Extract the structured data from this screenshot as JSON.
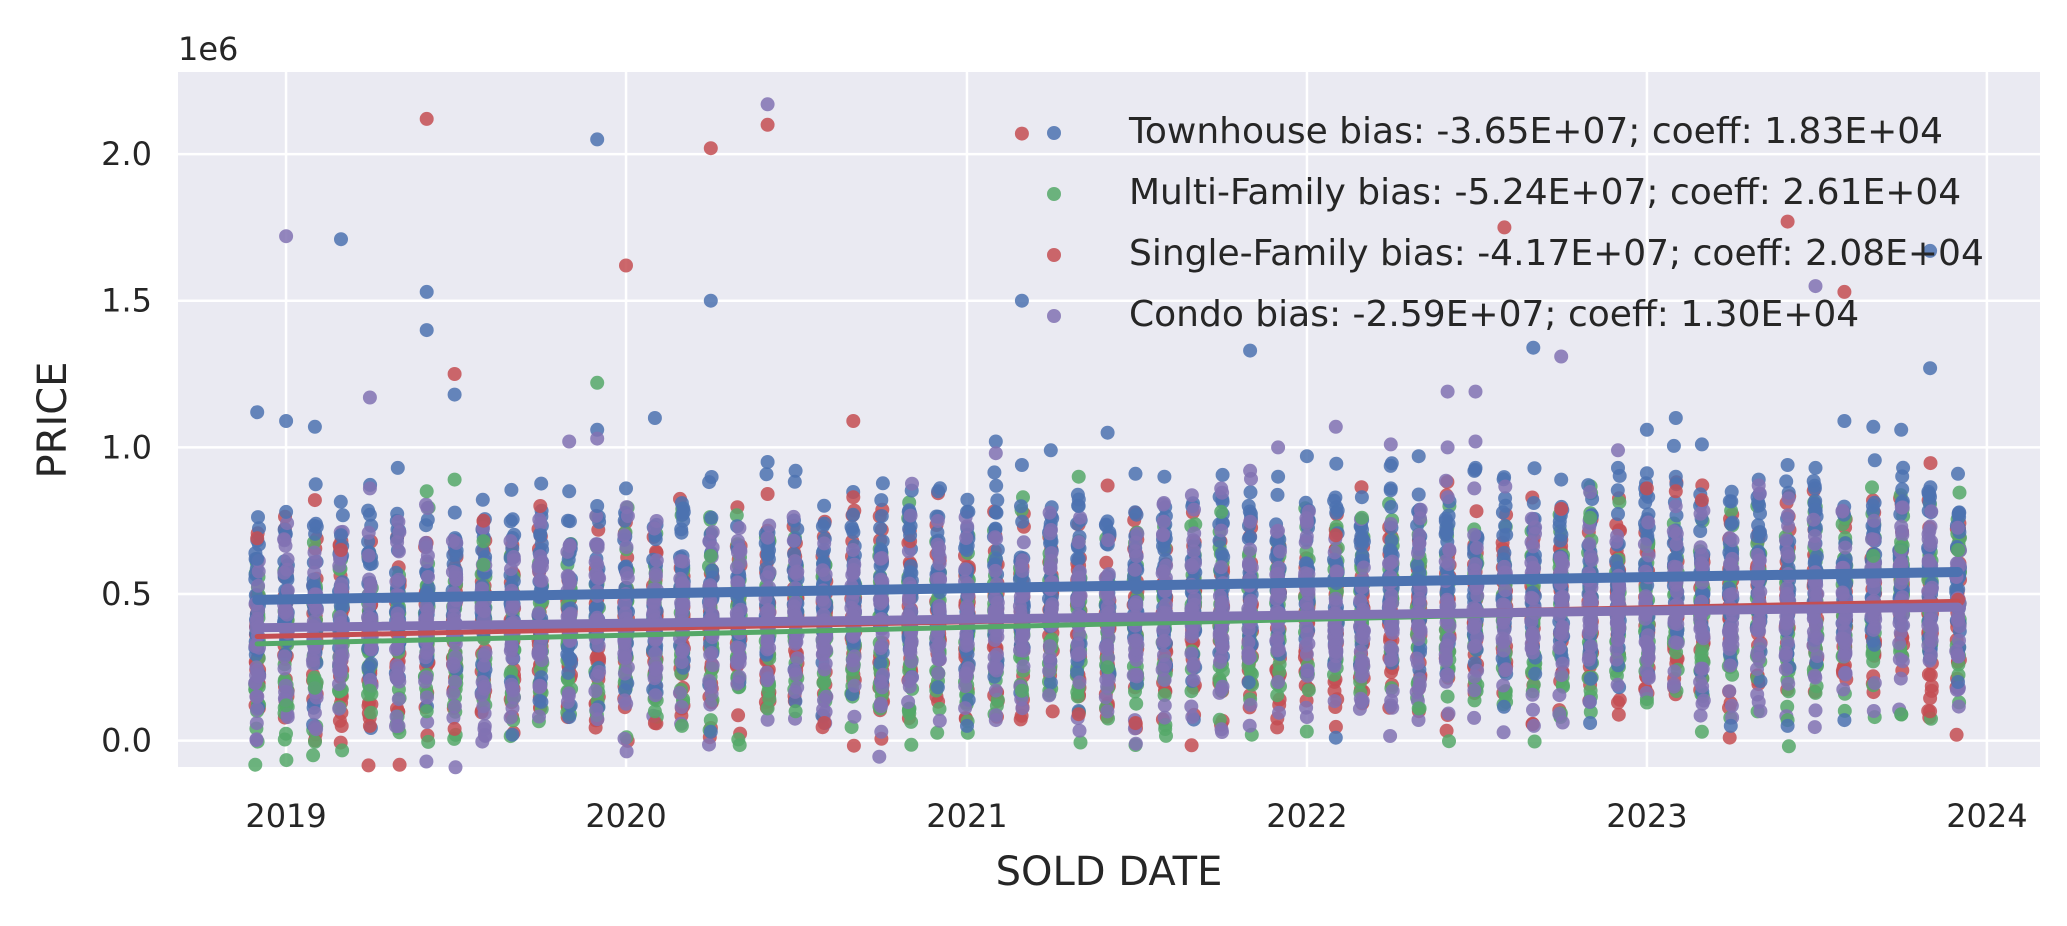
{
  "chart_data": {
    "type": "scatter",
    "title": "",
    "xlabel": "SOLD DATE",
    "ylabel": "PRICE",
    "y_offset_label": "1e6",
    "xlim": [
      "2018-09-07",
      "2024-02-27"
    ],
    "ylim": [
      -0.09,
      2.28
    ],
    "x_ticks": [
      {
        "value": "2019-01-01",
        "label": "2019"
      },
      {
        "value": "2020-01-01",
        "label": "2020"
      },
      {
        "value": "2021-01-01",
        "label": "2021"
      },
      {
        "value": "2022-01-01",
        "label": "2022"
      },
      {
        "value": "2023-01-01",
        "label": "2023"
      },
      {
        "value": "2024-01-01",
        "label": "2024"
      }
    ],
    "y_ticks": [
      {
        "value": 0.0,
        "label": "0.0"
      },
      {
        "value": 0.5,
        "label": "0.5"
      },
      {
        "value": 1.0,
        "label": "1.0"
      },
      {
        "value": 1.5,
        "label": "1.5"
      },
      {
        "value": 2.0,
        "label": "2.0"
      }
    ],
    "grid": true,
    "legend_position": "top-right",
    "series": [
      {
        "name": "Townhouse bias: -3.65E+07; coeff: 1.83E+04",
        "color": "#4c72b0",
        "fit": {
          "start": [
            "2018-12-01",
            0.48
          ],
          "end": [
            "2023-12-01",
            0.575
          ]
        },
        "points": [
          [
            "2018-12-01",
            1.12
          ],
          [
            "2018-12-01",
            0.62
          ],
          [
            "2019-01-01",
            0.78
          ],
          [
            "2019-01-01",
            1.09
          ],
          [
            "2019-02-01",
            1.07
          ],
          [
            "2019-03-01",
            1.71
          ],
          [
            "2019-03-01",
            0.7
          ],
          [
            "2019-04-01",
            0.77
          ],
          [
            "2019-05-01",
            0.93
          ],
          [
            "2019-06-01",
            1.53
          ],
          [
            "2019-06-01",
            1.4
          ],
          [
            "2019-07-01",
            1.18
          ],
          [
            "2019-09-01",
            0.02
          ],
          [
            "2019-10-01",
            0.7
          ],
          [
            "2019-11-01",
            0.08
          ],
          [
            "2019-11-01",
            0.85
          ],
          [
            "2019-12-01",
            2.05
          ],
          [
            "2019-12-01",
            1.06
          ],
          [
            "2019-12-01",
            0.8
          ],
          [
            "2020-01-01",
            0.86
          ],
          [
            "2020-02-01",
            1.1
          ],
          [
            "2020-03-01",
            0.81
          ],
          [
            "2020-04-01",
            1.5
          ],
          [
            "2020-04-01",
            0.03
          ],
          [
            "2020-06-01",
            0.95
          ],
          [
            "2020-07-01",
            0.92
          ],
          [
            "2020-08-01",
            0.74
          ],
          [
            "2020-10-01",
            0.82
          ],
          [
            "2020-11-01",
            0.7
          ],
          [
            "2020-12-01",
            0.85
          ],
          [
            "2021-01-01",
            0.78
          ],
          [
            "2021-01-01",
            0.05
          ],
          [
            "2021-02-01",
            1.02
          ],
          [
            "2021-03-01",
            1.5
          ],
          [
            "2021-03-01",
            0.94
          ],
          [
            "2021-04-01",
            0.99
          ],
          [
            "2021-05-01",
            0.8
          ],
          [
            "2021-06-01",
            1.05
          ],
          [
            "2021-07-01",
            0.91
          ],
          [
            "2021-08-01",
            0.9
          ],
          [
            "2021-11-01",
            1.33
          ],
          [
            "2021-12-01",
            0.9
          ],
          [
            "2022-01-01",
            0.97
          ],
          [
            "2022-02-01",
            0.01
          ],
          [
            "2022-03-01",
            0.83
          ],
          [
            "2022-04-01",
            0.86
          ],
          [
            "2022-05-01",
            0.97
          ],
          [
            "2022-07-01",
            0.93
          ],
          [
            "2022-08-01",
            0.64
          ],
          [
            "2022-09-01",
            1.34
          ],
          [
            "2022-10-01",
            0.89
          ],
          [
            "2022-11-01",
            0.06
          ],
          [
            "2022-12-01",
            0.93
          ],
          [
            "2023-01-01",
            1.06
          ],
          [
            "2023-02-01",
            1.1
          ],
          [
            "2023-02-01",
            0.9
          ],
          [
            "2023-03-01",
            1.01
          ],
          [
            "2023-04-01",
            0.05
          ],
          [
            "2023-05-01",
            0.89
          ],
          [
            "2023-06-01",
            0.94
          ],
          [
            "2023-06-01",
            0.05
          ],
          [
            "2023-07-01",
            0.93
          ],
          [
            "2023-08-01",
            1.09
          ],
          [
            "2023-08-01",
            0.07
          ],
          [
            "2023-09-01",
            1.07
          ],
          [
            "2023-10-01",
            1.06
          ],
          [
            "2023-11-01",
            1.27
          ],
          [
            "2023-11-01",
            1.67
          ],
          [
            "2023-12-01",
            0.91
          ],
          [
            "2023-12-01",
            0.2
          ]
        ]
      },
      {
        "name": "Multi-Family bias: -5.24E+07; coeff: 2.61E+04",
        "color": "#55a868",
        "fit": {
          "start": [
            "2018-12-01",
            0.33
          ],
          "end": [
            "2023-12-01",
            0.465
          ]
        },
        "points": [
          [
            "2019-01-01",
            0.12
          ],
          [
            "2019-02-01",
            0.18
          ],
          [
            "2019-04-01",
            0.17
          ],
          [
            "2019-06-01",
            0.85
          ],
          [
            "2019-06-01",
            0.1
          ],
          [
            "2019-07-01",
            0.89
          ],
          [
            "2019-08-01",
            0.6
          ],
          [
            "2019-08-01",
            0.68
          ],
          [
            "2019-12-01",
            1.22
          ],
          [
            "2020-02-01",
            0.1
          ],
          [
            "2020-03-01",
            0.05
          ],
          [
            "2020-04-01",
            0.07
          ],
          [
            "2020-04-01",
            0.63
          ],
          [
            "2020-06-01",
            0.11
          ],
          [
            "2020-07-01",
            0.1
          ],
          [
            "2021-03-01",
            0.17
          ],
          [
            "2021-05-01",
            0.9
          ],
          [
            "2021-06-01",
            0.25
          ],
          [
            "2021-10-01",
            0.78
          ],
          [
            "2022-03-01",
            0.76
          ],
          [
            "2022-05-01",
            0.11
          ],
          [
            "2022-06-01",
            0.15
          ],
          [
            "2022-11-01",
            0.76
          ],
          [
            "2023-01-01",
            0.13
          ],
          [
            "2023-03-01",
            0.03
          ],
          [
            "2023-06-01",
            0.07
          ],
          [
            "2023-09-01",
            0.63
          ],
          [
            "2023-10-01",
            0.09
          ],
          [
            "2023-10-01",
            0.66
          ],
          [
            "2023-12-01",
            0.65
          ]
        ]
      },
      {
        "name": "Single-Family bias: -4.17E+07; coeff: 2.08E+04",
        "color": "#c44e52",
        "fit": {
          "start": [
            "2018-12-01",
            0.355
          ],
          "end": [
            "2023-12-01",
            0.475
          ]
        },
        "points": [
          [
            "2018-12-01",
            0.69
          ],
          [
            "2019-02-01",
            0.82
          ],
          [
            "2019-03-01",
            0.65
          ],
          [
            "2019-04-01",
            0.05
          ],
          [
            "2019-06-01",
            2.12
          ],
          [
            "2019-07-01",
            1.25
          ],
          [
            "2019-07-01",
            0.04
          ],
          [
            "2019-08-01",
            0.75
          ],
          [
            "2019-10-01",
            0.8
          ],
          [
            "2020-01-01",
            1.62
          ],
          [
            "2020-02-01",
            0.06
          ],
          [
            "2020-04-01",
            2.02
          ],
          [
            "2020-06-01",
            2.1
          ],
          [
            "2020-08-01",
            0.06
          ],
          [
            "2020-09-01",
            1.09
          ],
          [
            "2020-09-01",
            0.83
          ],
          [
            "2020-11-01",
            0.68
          ],
          [
            "2021-03-01",
            2.07
          ],
          [
            "2021-05-01",
            0.09
          ],
          [
            "2021-07-01",
            0.06
          ],
          [
            "2021-06-01",
            0.87
          ],
          [
            "2022-02-01",
            0.7
          ],
          [
            "2022-08-01",
            1.75
          ],
          [
            "2022-10-01",
            0.79
          ],
          [
            "2022-12-01",
            0.13
          ],
          [
            "2023-01-01",
            0.86
          ],
          [
            "2023-02-01",
            0.85
          ],
          [
            "2023-03-01",
            0.82
          ],
          [
            "2023-06-01",
            1.77
          ],
          [
            "2023-08-01",
            1.53
          ],
          [
            "2023-11-01",
            0.1
          ],
          [
            "2023-12-01",
            0.48
          ]
        ]
      },
      {
        "name": "Condo bias: -2.59E+07; coeff: 1.30E+04",
        "color": "#8172b3",
        "fit": {
          "start": [
            "2018-12-01",
            0.385
          ],
          "end": [
            "2023-12-01",
            0.455
          ]
        },
        "points": [
          [
            "2019-01-01",
            1.72
          ],
          [
            "2019-04-01",
            1.17
          ],
          [
            "2019-04-01",
            0.86
          ],
          [
            "2019-11-01",
            1.02
          ],
          [
            "2019-12-01",
            1.03
          ],
          [
            "2020-06-01",
            2.17
          ],
          [
            "2020-10-01",
            0.03
          ],
          [
            "2021-02-01",
            0.98
          ],
          [
            "2021-02-01",
            0.07
          ],
          [
            "2021-10-01",
            0.86
          ],
          [
            "2021-11-01",
            0.92
          ],
          [
            "2021-12-01",
            1.0
          ],
          [
            "2022-01-01",
            0.08
          ],
          [
            "2022-02-01",
            1.07
          ],
          [
            "2022-04-01",
            1.01
          ],
          [
            "2022-06-01",
            1.19
          ],
          [
            "2022-06-01",
            1.0
          ],
          [
            "2022-07-01",
            1.19
          ],
          [
            "2022-07-01",
            1.02
          ],
          [
            "2022-10-01",
            1.31
          ],
          [
            "2022-12-01",
            0.99
          ],
          [
            "2023-05-01",
            0.87
          ],
          [
            "2023-07-01",
            1.55
          ],
          [
            "2023-10-01",
            0.73
          ]
        ]
      }
    ]
  }
}
